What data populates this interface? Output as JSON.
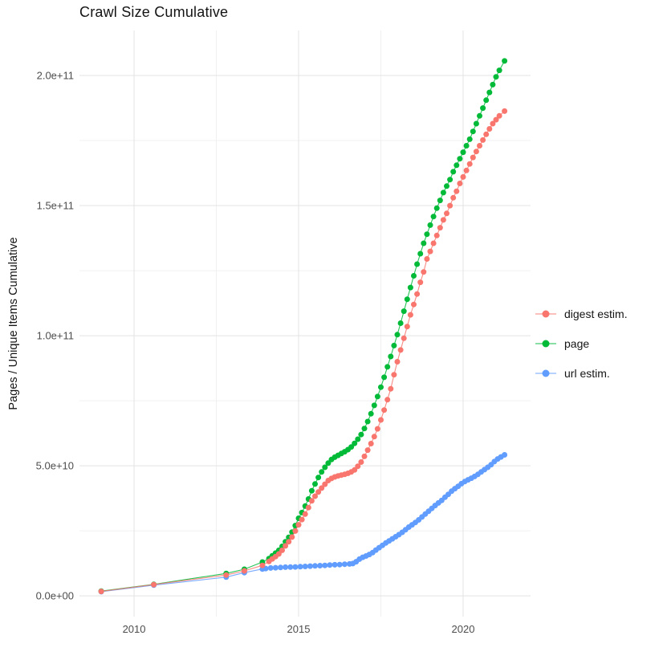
{
  "chart_data": {
    "type": "scatter",
    "title": "Crawl Size Cumulative",
    "xlabel": "",
    "ylabel": "Pages / Unique Items Cumulative",
    "value_unit": "1e9 (points stored in billions)",
    "grid": true,
    "legend_position": "right",
    "xlim": [
      2008.34,
      2022.05
    ],
    "ylim": [
      -8,
      217.3
    ],
    "x_ticks": [
      {
        "value": 2010,
        "label": "2010"
      },
      {
        "value": 2015,
        "label": "2015"
      },
      {
        "value": 2020,
        "label": "2020"
      }
    ],
    "x_minor": [
      2012.5,
      2017.5
    ],
    "y_ticks": [
      {
        "value": 0,
        "label": "0.0e+00"
      },
      {
        "value": 50,
        "label": "5.0e+10"
      },
      {
        "value": 100,
        "label": "1.0e+11"
      },
      {
        "value": 150,
        "label": "1.5e+11"
      },
      {
        "value": 200,
        "label": "2.0e+11"
      }
    ],
    "y_minor": [
      25,
      75,
      125,
      175
    ],
    "colors": {
      "grid_major": "#e3e3e3",
      "grid_minor": "#f0f0f0",
      "tick_text": "#4d4d4d",
      "title_text": "#141414"
    },
    "series": [
      {
        "name": "digest estim.",
        "color": "#F8766D",
        "points": [
          [
            2009.0,
            1.7
          ],
          [
            2010.6,
            4.3
          ],
          [
            2012.8,
            8.0
          ],
          [
            2013.35,
            9.6
          ],
          [
            2013.9,
            11.7
          ],
          [
            2014.1,
            13.2
          ],
          [
            2014.2,
            14.2
          ],
          [
            2014.3,
            15.1
          ],
          [
            2014.4,
            16.1
          ],
          [
            2014.5,
            17.5
          ],
          [
            2014.6,
            19.2
          ],
          [
            2014.7,
            20.8
          ],
          [
            2014.8,
            22.6
          ],
          [
            2014.9,
            24.9
          ],
          [
            2015.0,
            27.3
          ],
          [
            2015.1,
            29.3
          ],
          [
            2015.2,
            31.4
          ],
          [
            2015.3,
            33.9
          ],
          [
            2015.4,
            36.5
          ],
          [
            2015.5,
            38.3
          ],
          [
            2015.6,
            39.9
          ],
          [
            2015.7,
            41.4
          ],
          [
            2015.8,
            42.9
          ],
          [
            2015.9,
            44.3
          ],
          [
            2016.0,
            45.1
          ],
          [
            2016.1,
            45.7
          ],
          [
            2016.2,
            46.1
          ],
          [
            2016.3,
            46.4
          ],
          [
            2016.4,
            46.7
          ],
          [
            2016.5,
            47.1
          ],
          [
            2016.6,
            47.6
          ],
          [
            2016.7,
            48.4
          ],
          [
            2016.8,
            49.8
          ],
          [
            2016.9,
            51.4
          ],
          [
            2017.0,
            53.6
          ],
          [
            2017.1,
            56.0
          ],
          [
            2017.2,
            58.5
          ],
          [
            2017.3,
            61.2
          ],
          [
            2017.4,
            64.2
          ],
          [
            2017.5,
            67.6
          ],
          [
            2017.6,
            71.4
          ],
          [
            2017.7,
            75.4
          ],
          [
            2017.8,
            79.6
          ],
          [
            2017.9,
            85.0
          ],
          [
            2018.0,
            90.0
          ],
          [
            2018.1,
            94.5
          ],
          [
            2018.2,
            99.0
          ],
          [
            2018.3,
            103.5
          ],
          [
            2018.4,
            108.0
          ],
          [
            2018.5,
            112.0
          ],
          [
            2018.6,
            116.0
          ],
          [
            2018.7,
            120.5
          ],
          [
            2018.8,
            124.5
          ],
          [
            2018.9,
            129.5
          ],
          [
            2019.0,
            132.4
          ],
          [
            2019.1,
            135.5
          ],
          [
            2019.2,
            138.5
          ],
          [
            2019.3,
            141.5
          ],
          [
            2019.4,
            144.5
          ],
          [
            2019.5,
            147.0
          ],
          [
            2019.6,
            150.0
          ],
          [
            2019.7,
            153.0
          ],
          [
            2019.8,
            155.5
          ],
          [
            2019.9,
            158.5
          ],
          [
            2020.0,
            161.0
          ],
          [
            2020.1,
            163.5
          ],
          [
            2020.2,
            166.0
          ],
          [
            2020.3,
            168.5
          ],
          [
            2020.4,
            170.8
          ],
          [
            2020.5,
            173.0
          ],
          [
            2020.6,
            175.2
          ],
          [
            2020.7,
            177.4
          ],
          [
            2020.8,
            179.5
          ],
          [
            2020.9,
            181.5
          ],
          [
            2021.0,
            183.0
          ],
          [
            2021.1,
            184.5
          ],
          [
            2021.26,
            186.3
          ]
        ]
      },
      {
        "name": "page",
        "color": "#00BA38",
        "points": [
          [
            2009.0,
            1.8
          ],
          [
            2010.6,
            4.4
          ],
          [
            2012.8,
            8.6
          ],
          [
            2013.35,
            10.2
          ],
          [
            2013.9,
            13.0
          ],
          [
            2014.1,
            14.3
          ],
          [
            2014.2,
            15.4
          ],
          [
            2014.3,
            16.4
          ],
          [
            2014.4,
            17.5
          ],
          [
            2014.5,
            19.0
          ],
          [
            2014.6,
            20.8
          ],
          [
            2014.7,
            22.5
          ],
          [
            2014.8,
            24.5
          ],
          [
            2014.9,
            27.0
          ],
          [
            2015.0,
            29.8
          ],
          [
            2015.1,
            32.0
          ],
          [
            2015.2,
            34.5
          ],
          [
            2015.3,
            37.2
          ],
          [
            2015.4,
            40.4
          ],
          [
            2015.5,
            43.0
          ],
          [
            2015.6,
            45.5
          ],
          [
            2015.7,
            47.6
          ],
          [
            2015.8,
            49.4
          ],
          [
            2015.9,
            51.0
          ],
          [
            2016.0,
            52.4
          ],
          [
            2016.1,
            53.3
          ],
          [
            2016.2,
            54.0
          ],
          [
            2016.3,
            54.7
          ],
          [
            2016.4,
            55.4
          ],
          [
            2016.5,
            56.2
          ],
          [
            2016.6,
            57.2
          ],
          [
            2016.7,
            58.6
          ],
          [
            2016.8,
            60.2
          ],
          [
            2016.9,
            62.0
          ],
          [
            2017.0,
            64.3
          ],
          [
            2017.1,
            67.0
          ],
          [
            2017.2,
            70.0
          ],
          [
            2017.3,
            73.2
          ],
          [
            2017.4,
            76.6
          ],
          [
            2017.5,
            80.2
          ],
          [
            2017.6,
            84.0
          ],
          [
            2017.7,
            88.0
          ],
          [
            2017.8,
            92.0
          ],
          [
            2017.9,
            96.2
          ],
          [
            2018.0,
            100.4
          ],
          [
            2018.1,
            104.8
          ],
          [
            2018.2,
            109.4
          ],
          [
            2018.3,
            114.0
          ],
          [
            2018.4,
            118.5
          ],
          [
            2018.5,
            123.0
          ],
          [
            2018.6,
            127.5
          ],
          [
            2018.7,
            131.5
          ],
          [
            2018.8,
            135.5
          ],
          [
            2018.9,
            139.0
          ],
          [
            2019.0,
            142.5
          ],
          [
            2019.1,
            145.8
          ],
          [
            2019.2,
            149.0
          ],
          [
            2019.3,
            152.0
          ],
          [
            2019.4,
            155.0
          ],
          [
            2019.5,
            157.5
          ],
          [
            2019.6,
            160.0
          ],
          [
            2019.7,
            163.0
          ],
          [
            2019.8,
            165.5
          ],
          [
            2019.9,
            168.0
          ],
          [
            2020.0,
            170.5
          ],
          [
            2020.1,
            173.0
          ],
          [
            2020.2,
            175.5
          ],
          [
            2020.3,
            178.5
          ],
          [
            2020.4,
            181.5
          ],
          [
            2020.5,
            184.5
          ],
          [
            2020.6,
            187.5
          ],
          [
            2020.7,
            190.5
          ],
          [
            2020.8,
            193.5
          ],
          [
            2020.9,
            196.5
          ],
          [
            2021.0,
            199.5
          ],
          [
            2021.1,
            202.0
          ],
          [
            2021.26,
            205.6
          ]
        ]
      },
      {
        "name": "url estim.",
        "color": "#619CFF",
        "points": [
          [
            2009.0,
            1.6
          ],
          [
            2010.6,
            4.1
          ],
          [
            2012.8,
            7.2
          ],
          [
            2013.35,
            8.9
          ],
          [
            2013.9,
            10.3
          ],
          [
            2014.0,
            10.5
          ],
          [
            2014.15,
            10.7
          ],
          [
            2014.3,
            10.8
          ],
          [
            2014.45,
            10.9
          ],
          [
            2014.6,
            11.0
          ],
          [
            2014.75,
            11.05
          ],
          [
            2014.9,
            11.1
          ],
          [
            2015.05,
            11.2
          ],
          [
            2015.2,
            11.3
          ],
          [
            2015.35,
            11.4
          ],
          [
            2015.5,
            11.5
          ],
          [
            2015.65,
            11.6
          ],
          [
            2015.8,
            11.7
          ],
          [
            2015.95,
            11.85
          ],
          [
            2016.1,
            11.95
          ],
          [
            2016.25,
            12.0
          ],
          [
            2016.4,
            12.15
          ],
          [
            2016.55,
            12.25
          ],
          [
            2016.65,
            12.4
          ],
          [
            2016.75,
            13.1
          ],
          [
            2016.85,
            14.1
          ],
          [
            2016.95,
            14.8
          ],
          [
            2017.05,
            15.3
          ],
          [
            2017.15,
            15.9
          ],
          [
            2017.25,
            16.6
          ],
          [
            2017.35,
            17.6
          ],
          [
            2017.45,
            18.5
          ],
          [
            2017.55,
            19.4
          ],
          [
            2017.65,
            20.3
          ],
          [
            2017.75,
            21.1
          ],
          [
            2017.85,
            21.9
          ],
          [
            2017.95,
            22.7
          ],
          [
            2018.05,
            23.5
          ],
          [
            2018.15,
            24.4
          ],
          [
            2018.25,
            25.4
          ],
          [
            2018.35,
            26.4
          ],
          [
            2018.45,
            27.3
          ],
          [
            2018.55,
            28.2
          ],
          [
            2018.65,
            29.2
          ],
          [
            2018.75,
            30.3
          ],
          [
            2018.85,
            31.4
          ],
          [
            2018.95,
            32.5
          ],
          [
            2019.05,
            33.6
          ],
          [
            2019.15,
            34.7
          ],
          [
            2019.25,
            35.7
          ],
          [
            2019.35,
            36.7
          ],
          [
            2019.45,
            37.9
          ],
          [
            2019.55,
            39.0
          ],
          [
            2019.65,
            40.2
          ],
          [
            2019.75,
            41.2
          ],
          [
            2019.85,
            42.1
          ],
          [
            2019.95,
            43.1
          ],
          [
            2020.05,
            43.9
          ],
          [
            2020.15,
            44.6
          ],
          [
            2020.25,
            45.2
          ],
          [
            2020.35,
            45.9
          ],
          [
            2020.45,
            46.7
          ],
          [
            2020.55,
            47.6
          ],
          [
            2020.65,
            48.5
          ],
          [
            2020.75,
            49.4
          ],
          [
            2020.85,
            50.4
          ],
          [
            2020.95,
            51.6
          ],
          [
            2021.05,
            52.6
          ],
          [
            2021.15,
            53.4
          ],
          [
            2021.26,
            54.2
          ]
        ]
      }
    ]
  }
}
